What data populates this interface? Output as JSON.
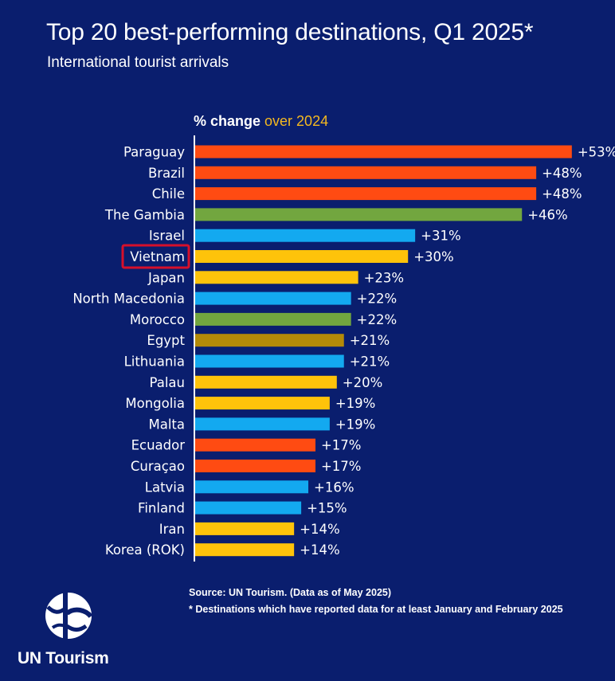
{
  "title": "Top 20 best-performing destinations, Q1 2025*",
  "subtitle": "International tourist arrivals",
  "axis_heading": {
    "part1": "% change ",
    "part2": "over 2024"
  },
  "colors": {
    "background": "#0a1e6e",
    "accent": "#f4b820",
    "highlight_box": "#d6102b",
    "series": {
      "americas": "#ff4b12",
      "africa": "#72a63f",
      "middle_east": "#13a9f0",
      "asia_pacific": "#fec30a",
      "north_africa": "#b48a08"
    }
  },
  "chart_data": {
    "type": "bar",
    "orientation": "horizontal",
    "title": "Top 20 best-performing destinations, Q1 2025*",
    "subtitle": "International tourist arrivals",
    "xlabel": "% change over 2024",
    "xlim": [
      0,
      55
    ],
    "grid": false,
    "highlighted_category": "Vietnam",
    "categories": [
      "Paraguay",
      "Brazil",
      "Chile",
      "The Gambia",
      "Israel",
      "Vietnam",
      "Japan",
      "North Macedonia",
      "Morocco",
      "Egypt",
      "Lithuania",
      "Palau",
      "Mongolia",
      "Malta",
      "Ecuador",
      "Curaçao",
      "Latvia",
      "Finland",
      "Iran",
      "Korea (ROK)"
    ],
    "values": [
      53,
      48,
      48,
      46,
      31,
      30,
      23,
      22,
      22,
      21,
      21,
      20,
      19,
      19,
      17,
      17,
      16,
      15,
      14,
      14
    ],
    "value_labels": [
      "+53%",
      "+48%",
      "+48%",
      "+46%",
      "+31%",
      "+30%",
      "+23%",
      "+22%",
      "+22%",
      "+21%",
      "+21%",
      "+20%",
      "+19%",
      "+19%",
      "+17%",
      "+17%",
      "+16%",
      "+15%",
      "+14%",
      "+14%"
    ],
    "bar_colors": [
      "#ff4b12",
      "#ff4b12",
      "#ff4b12",
      "#72a63f",
      "#13a9f0",
      "#fec30a",
      "#fec30a",
      "#13a9f0",
      "#72a63f",
      "#b48a08",
      "#13a9f0",
      "#fec30a",
      "#fec30a",
      "#13a9f0",
      "#ff4b12",
      "#ff4b12",
      "#13a9f0",
      "#13a9f0",
      "#fec30a",
      "#fec30a"
    ]
  },
  "footer": {
    "source": "Source: UN Tourism. (Data as of May 2025)",
    "note": "* Destinations which have reported data for at least January and February 2025"
  },
  "brand": {
    "name": "UN Tourism",
    "logo_icon": "un-tourism-logo-icon"
  }
}
